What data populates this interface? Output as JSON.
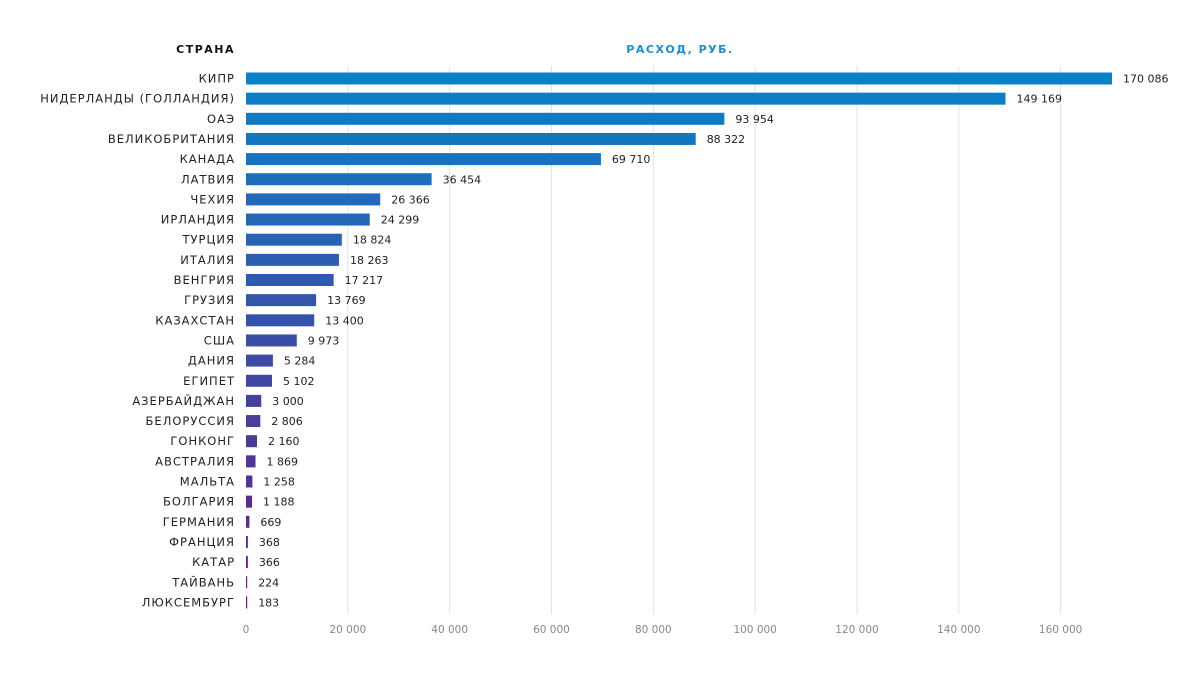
{
  "chart_data": {
    "type": "bar",
    "orientation": "horizontal",
    "category_header": "СТРАНА",
    "value_header": "РАСХОД, РУБ.",
    "categories": [
      "КИПР",
      "НИДЕРЛАНДЫ (ГОЛЛАНДИЯ)",
      "ОАЭ",
      "ВЕЛИКОБРИТАНИЯ",
      "КАНАДА",
      "ЛАТВИЯ",
      "ЧЕХИЯ",
      "ИРЛАНДИЯ",
      "ТУРЦИЯ",
      "ИТАЛИЯ",
      "ВЕНГРИЯ",
      "ГРУЗИЯ",
      "КАЗАХСТАН",
      "США",
      "ДАНИЯ",
      "ЕГИПЕТ",
      "АЗЕРБАЙДЖАН",
      "БЕЛОРУССИЯ",
      "ГОНКОНГ",
      "АВСТРАЛИЯ",
      "МАЛЬТА",
      "БОЛГАРИЯ",
      "ГЕРМАНИЯ",
      "ФРАНЦИЯ",
      "КАТАР",
      "ТАЙВАНЬ",
      "ЛЮКСЕМБУРГ"
    ],
    "values": [
      170086,
      149169,
      93954,
      88322,
      69710,
      36454,
      26366,
      24299,
      18824,
      18263,
      17217,
      13769,
      13400,
      9973,
      5284,
      5102,
      3000,
      2806,
      2160,
      1869,
      1258,
      1188,
      669,
      368,
      366,
      224,
      183
    ],
    "value_labels": [
      "170 086",
      "149 169",
      "93 954",
      "88 322",
      "69 710",
      "36 454",
      "26 366",
      "24 299",
      "18 824",
      "18 263",
      "17 217",
      "13 769",
      "13 400",
      "9 973",
      "5 284",
      "5 102",
      "3 000",
      "2 806",
      "2 160",
      "1 869",
      "1 258",
      "1 188",
      "669",
      "368",
      "366",
      "224",
      "183"
    ],
    "xlim": [
      0,
      170086
    ],
    "xticks": [
      0,
      20000,
      40000,
      60000,
      80000,
      100000,
      120000,
      140000,
      160000
    ],
    "xtick_labels": [
      "0",
      "20 000",
      "40 000",
      "60 000",
      "80 000",
      "100 000",
      "120 000",
      "140 000",
      "160 000"
    ],
    "grid": "vertical",
    "colors": {
      "gradient_top": "#0a82c8",
      "gradient_bottom": "#6a1a86",
      "value_header": "#1a8fd0"
    }
  }
}
